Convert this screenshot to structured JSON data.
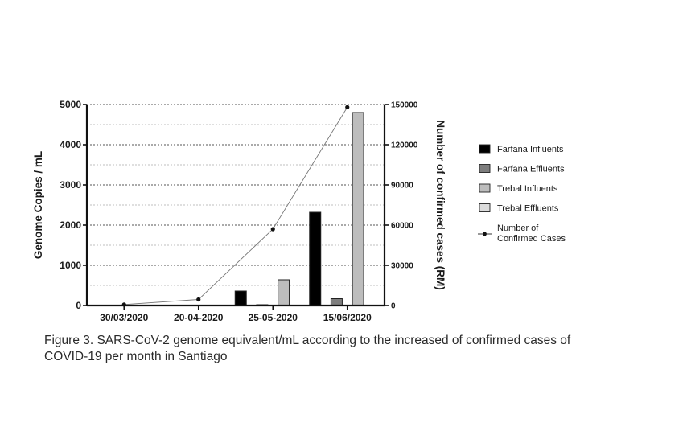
{
  "chart_data": {
    "type": "bar",
    "categories": [
      "30/03/2020",
      "20-04-2020",
      "25-05-2020",
      "15/06/2020"
    ],
    "series": [
      {
        "name": "Farfana Influents",
        "axis": "left",
        "color": "#000000",
        "values": [
          0,
          0,
          360,
          2320
        ]
      },
      {
        "name": "Farfana Effluents",
        "axis": "left",
        "color": "#7d7d7d",
        "values": [
          0,
          0,
          20,
          170
        ]
      },
      {
        "name": "Trebal Influents",
        "axis": "left",
        "color": "#bdbdbd",
        "values": [
          0,
          0,
          640,
          4800
        ]
      },
      {
        "name": "Trebal Effluents",
        "axis": "left",
        "color": "#dcdcdc",
        "values": [
          0,
          0,
          0,
          0
        ]
      }
    ],
    "line_series": {
      "name_lines": [
        "Number of",
        "Confirmed Cases"
      ],
      "axis": "right",
      "type": "line",
      "values": [
        700,
        4500,
        57000,
        148000
      ]
    },
    "ylabel": "Genome Copies / mL",
    "ylabel_right": "Number of confirmed cases (RM)",
    "ylim": [
      0,
      5000
    ],
    "yticks": [
      "0",
      "1000",
      "2000",
      "3000",
      "4000",
      "5000"
    ],
    "ylim_right": [
      0,
      150000
    ],
    "yticks_right": [
      "0",
      "30000",
      "60000",
      "90000",
      "120000",
      "150000"
    ],
    "grid": "dotted horizontal",
    "legend_placement": "right"
  },
  "caption": {
    "line1": "Figure 3. SARS-CoV-2 genome equivalent/mL according to the increased of confirmed cases of",
    "line2": "COVID-19 per month in Santiago"
  }
}
